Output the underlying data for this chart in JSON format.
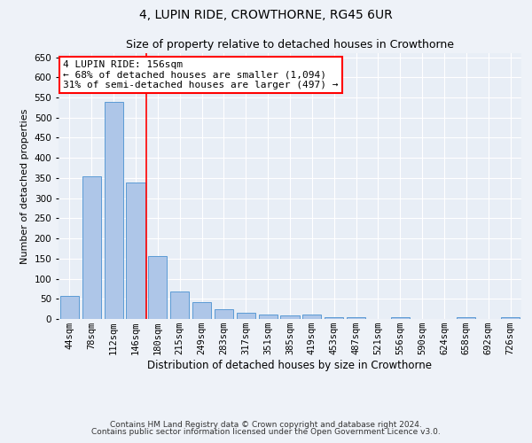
{
  "title": "4, LUPIN RIDE, CROWTHORNE, RG45 6UR",
  "subtitle": "Size of property relative to detached houses in Crowthorne",
  "xlabel": "Distribution of detached houses by size in Crowthorne",
  "ylabel": "Number of detached properties",
  "categories": [
    "44sqm",
    "78sqm",
    "112sqm",
    "146sqm",
    "180sqm",
    "215sqm",
    "249sqm",
    "283sqm",
    "317sqm",
    "351sqm",
    "385sqm",
    "419sqm",
    "453sqm",
    "487sqm",
    "521sqm",
    "556sqm",
    "590sqm",
    "624sqm",
    "658sqm",
    "692sqm",
    "726sqm"
  ],
  "values": [
    58,
    355,
    540,
    338,
    157,
    68,
    42,
    25,
    15,
    10,
    8,
    10,
    5,
    5,
    1,
    5,
    1,
    1,
    5,
    1,
    5
  ],
  "bar_color": "#aec6e8",
  "bar_edge_color": "#5b9bd5",
  "annotation_box_text": "4 LUPIN RIDE: 156sqm\n← 68% of detached houses are smaller (1,094)\n31% of semi-detached houses are larger (497) →",
  "annotation_box_color": "white",
  "annotation_box_edge_color": "red",
  "vline_color": "red",
  "vline_x": 3.5,
  "ylim": [
    0,
    660
  ],
  "yticks": [
    0,
    50,
    100,
    150,
    200,
    250,
    300,
    350,
    400,
    450,
    500,
    550,
    600,
    650
  ],
  "footer_line1": "Contains HM Land Registry data © Crown copyright and database right 2024.",
  "footer_line2": "Contains public sector information licensed under the Open Government Licence v3.0.",
  "bg_color": "#eef2f8",
  "plot_bg_color": "#e8eef6",
  "grid_color": "white",
  "title_fontsize": 10,
  "subtitle_fontsize": 9,
  "xlabel_fontsize": 8.5,
  "ylabel_fontsize": 8,
  "tick_fontsize": 7.5,
  "annot_fontsize": 8,
  "footer_fontsize": 6.5
}
